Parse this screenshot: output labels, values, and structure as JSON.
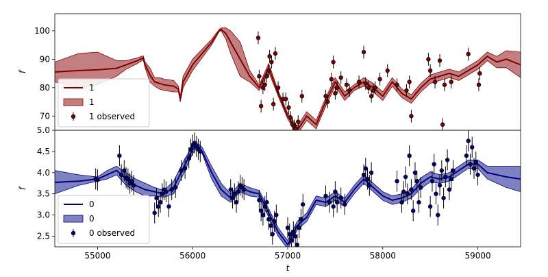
{
  "chart_data": [
    {
      "type": "line",
      "panel": "top",
      "ylabel": "f",
      "xlabel": "",
      "xlim": [
        54550,
        59450
      ],
      "ylim": [
        65,
        106
      ],
      "xticks": [
        55000,
        56000,
        57000,
        58000,
        59000
      ],
      "yticks": [
        70,
        80,
        90,
        100
      ],
      "ytick_labels": [
        "70",
        "80",
        "90",
        "100"
      ],
      "legend_position": "lower-left",
      "colors": {
        "line": "#800000",
        "band": "#a33a3a",
        "points": "#800000"
      },
      "legend": [
        {
          "kind": "line",
          "label": "1"
        },
        {
          "kind": "band",
          "label": "1"
        },
        {
          "kind": "errorbar",
          "label": "1 observed"
        }
      ],
      "series": [
        {
          "name": "1",
          "kind": "mean",
          "x": [
            54550,
            54800,
            55000,
            55200,
            55300,
            55420,
            55480,
            55500,
            55550,
            55600,
            55650,
            55700,
            55800,
            55850,
            55870,
            55900,
            56000,
            56100,
            56200,
            56280,
            56300,
            56350,
            56400,
            56500,
            56600,
            56700,
            56800,
            56900,
            57000,
            57100,
            57200,
            57300,
            57400,
            57500,
            57600,
            57700,
            57800,
            57900,
            58000,
            58100,
            58200,
            58300,
            58400,
            58500,
            58600,
            58700,
            58800,
            58900,
            59000,
            59100,
            59200,
            59300,
            59450
          ],
          "y": [
            85.5,
            86,
            86.3,
            86.8,
            88,
            89.5,
            90.5,
            88,
            84.5,
            82,
            81.5,
            81,
            80.5,
            79.5,
            76,
            82,
            88,
            92,
            96,
            100,
            100.5,
            99,
            96,
            90,
            84,
            80,
            87,
            78,
            70,
            65,
            70,
            67,
            75,
            82,
            77,
            80,
            82,
            80,
            77,
            82,
            78,
            76,
            80,
            83,
            84,
            85,
            84,
            86,
            88,
            91,
            89,
            90,
            88
          ]
        },
        {
          "name": "1",
          "kind": "band",
          "x": [
            54550,
            54800,
            55000,
            55200,
            55300,
            55420,
            55480,
            55500,
            55550,
            55600,
            55650,
            55700,
            55800,
            55850,
            55870,
            55900,
            56000,
            56100,
            56200,
            56280,
            56300,
            56350,
            56400,
            56500,
            56600,
            56700,
            56800,
            56900,
            57000,
            57100,
            57200,
            57300,
            57400,
            57500,
            57600,
            57700,
            57800,
            57900,
            58000,
            58100,
            58200,
            58300,
            58400,
            58500,
            58600,
            58700,
            58800,
            58900,
            59000,
            59100,
            59200,
            59300,
            59450
          ],
          "y_low": [
            82,
            80,
            81,
            84,
            86.5,
            88.5,
            89.8,
            87,
            82,
            80.5,
            79.5,
            79,
            78.5,
            78.5,
            75,
            80,
            86,
            90.5,
            95,
            99.8,
            100,
            97,
            92,
            84,
            82,
            79,
            85.5,
            77,
            69,
            63.5,
            68.5,
            65.5,
            73.5,
            80.5,
            75.5,
            79,
            80.5,
            78.5,
            75.5,
            80.5,
            76.5,
            74.5,
            78.5,
            81.5,
            82.5,
            83.5,
            82.5,
            84.5,
            86.5,
            89.5,
            87,
            87,
            83.5
          ],
          "y_high": [
            89,
            92,
            92.5,
            89.5,
            89.5,
            90.5,
            91.2,
            89,
            87,
            83.5,
            83.5,
            83,
            82.5,
            80.5,
            77,
            84,
            90,
            93.5,
            97,
            100.5,
            101,
            101,
            100,
            96,
            86,
            81,
            88.5,
            79,
            71,
            66.5,
            71.5,
            68.5,
            76.5,
            83.5,
            78.5,
            81,
            83.5,
            81.5,
            78.5,
            83.5,
            79.5,
            77.5,
            81.5,
            84.5,
            85.5,
            86.5,
            85.5,
            87.5,
            89.5,
            92.5,
            91,
            93,
            92.5
          ]
        },
        {
          "name": "1 observed",
          "kind": "observed",
          "x": [
            56690,
            56700,
            56720,
            56740,
            56760,
            56780,
            56800,
            56810,
            56830,
            56850,
            56870,
            56900,
            56950,
            56980,
            57010,
            57030,
            57050,
            57070,
            57080,
            57100,
            57110,
            57150,
            57400,
            57420,
            57460,
            57480,
            57500,
            57520,
            57560,
            57620,
            57650,
            57750,
            57800,
            57820,
            57850,
            57880,
            57900,
            57920,
            57970,
            58050,
            58150,
            58250,
            58280,
            58300,
            58480,
            58500,
            58550,
            58600,
            58630,
            58650,
            58720,
            58900,
            59010,
            59020
          ],
          "y": [
            97.5,
            84,
            73.5,
            80,
            81,
            84,
            86,
            91,
            89,
            74.2,
            92,
            80,
            76,
            76,
            73,
            69.5,
            67,
            66.5,
            65.5,
            64,
            68,
            77,
            77,
            75,
            83,
            89,
            78,
            80,
            83.5,
            81,
            79,
            82,
            92.5,
            81.5,
            80,
            77,
            79,
            80,
            83,
            86,
            81,
            79,
            82,
            70,
            90,
            86,
            82,
            89.5,
            67,
            81,
            82,
            91.8,
            81,
            85
          ]
        }
      ]
    },
    {
      "type": "line",
      "panel": "bottom",
      "ylabel": "f",
      "xlabel": "t",
      "xlim": [
        54550,
        59450
      ],
      "ylim": [
        2.25,
        5.0
      ],
      "xticks": [
        55000,
        56000,
        57000,
        58000,
        59000
      ],
      "xtick_labels": [
        "55000",
        "56000",
        "57000",
        "58000",
        "59000"
      ],
      "yticks": [
        2.5,
        3.0,
        3.5,
        4.0,
        4.5,
        5.0
      ],
      "ytick_labels": [
        "2.5",
        "3.0",
        "3.5",
        "4.0",
        "4.5",
        "5.0"
      ],
      "legend_position": "lower-left",
      "colors": {
        "line": "#000080",
        "band": "#3b3fa0",
        "points": "#000080"
      },
      "legend": [
        {
          "kind": "line",
          "label": "0"
        },
        {
          "kind": "band",
          "label": "0"
        },
        {
          "kind": "errorbar",
          "label": "0 observed"
        }
      ],
      "series": [
        {
          "name": "0",
          "kind": "mean",
          "x": [
            54550,
            54800,
            55000,
            55100,
            55200,
            55300,
            55400,
            55500,
            55600,
            55700,
            55800,
            55900,
            56000,
            56050,
            56100,
            56200,
            56300,
            56400,
            56500,
            56600,
            56700,
            56800,
            56900,
            57000,
            57100,
            57200,
            57300,
            57400,
            57500,
            57600,
            57700,
            57800,
            57900,
            58000,
            58100,
            58200,
            58300,
            58400,
            58500,
            58600,
            58700,
            58800,
            58900,
            59000,
            59100,
            59200,
            59300,
            59450
          ],
          "y": [
            3.77,
            3.8,
            3.85,
            3.95,
            4.05,
            3.85,
            3.7,
            3.6,
            3.55,
            3.5,
            3.65,
            4.1,
            4.55,
            4.65,
            4.5,
            4.0,
            3.6,
            3.4,
            3.65,
            3.55,
            3.5,
            3.05,
            2.6,
            2.3,
            2.75,
            2.95,
            3.35,
            3.3,
            3.45,
            3.3,
            3.6,
            3.85,
            3.65,
            3.45,
            3.35,
            3.4,
            3.5,
            3.75,
            3.9,
            3.85,
            3.9,
            4.05,
            4.2,
            4.2,
            4.0,
            3.95,
            3.9,
            3.85
          ]
        },
        {
          "name": "0",
          "kind": "band",
          "x": [
            54550,
            54800,
            55000,
            55100,
            55200,
            55300,
            55400,
            55500,
            55600,
            55700,
            55800,
            55900,
            56000,
            56050,
            56100,
            56200,
            56300,
            56400,
            56500,
            56600,
            56700,
            56800,
            56900,
            57000,
            57100,
            57200,
            57300,
            57400,
            57500,
            57600,
            57700,
            57800,
            57900,
            58000,
            58100,
            58200,
            58300,
            58400,
            58500,
            58600,
            58700,
            58800,
            58900,
            59000,
            59100,
            59200,
            59300,
            59450
          ],
          "y_low": [
            3.5,
            3.7,
            3.8,
            3.85,
            3.95,
            3.7,
            3.55,
            3.45,
            3.45,
            3.42,
            3.5,
            3.95,
            4.45,
            4.6,
            4.45,
            3.85,
            3.45,
            3.3,
            3.55,
            3.45,
            3.42,
            2.95,
            2.5,
            2.2,
            2.65,
            2.85,
            3.25,
            3.2,
            3.35,
            3.2,
            3.5,
            3.75,
            3.55,
            3.35,
            3.25,
            3.3,
            3.4,
            3.62,
            3.78,
            3.75,
            3.8,
            3.95,
            4.1,
            4.1,
            3.85,
            3.75,
            3.65,
            3.55
          ],
          "y_high": [
            4.05,
            3.95,
            3.9,
            4.05,
            4.15,
            4.0,
            3.85,
            3.75,
            3.65,
            3.58,
            3.8,
            4.25,
            4.65,
            4.7,
            4.6,
            4.15,
            3.75,
            3.5,
            3.75,
            3.65,
            3.58,
            3.15,
            2.7,
            2.4,
            2.85,
            3.05,
            3.45,
            3.4,
            3.55,
            3.4,
            3.7,
            3.95,
            3.75,
            3.55,
            3.45,
            3.5,
            3.6,
            3.88,
            4.02,
            3.95,
            4.0,
            4.15,
            4.3,
            4.3,
            4.15,
            4.15,
            4.15,
            4.15
          ]
        },
        {
          "name": "0 observed",
          "kind": "observed",
          "x": [
            54980,
            55000,
            55230,
            55250,
            55280,
            55300,
            55320,
            55340,
            55360,
            55380,
            55600,
            55620,
            55640,
            55660,
            55680,
            55700,
            55720,
            55750,
            55780,
            55820,
            55880,
            55920,
            55960,
            55980,
            56000,
            56020,
            56040,
            56060,
            56080,
            56400,
            56420,
            56440,
            56460,
            56480,
            56500,
            56520,
            56540,
            56700,
            56720,
            56740,
            56760,
            56780,
            56800,
            56820,
            56840,
            56860,
            56880,
            57000,
            57020,
            57040,
            57060,
            57080,
            57100,
            57120,
            57140,
            57160,
            57400,
            57440,
            57480,
            57500,
            57520,
            57560,
            57600,
            57800,
            57820,
            57840,
            57860,
            57880,
            58150,
            58200,
            58220,
            58240,
            58260,
            58280,
            58300,
            58320,
            58340,
            58360,
            58380,
            58400,
            58500,
            58520,
            58540,
            58560,
            58580,
            58600,
            58620,
            58640,
            58660,
            58680,
            58700,
            58720,
            58740,
            58880,
            58900,
            58920,
            58940,
            58960,
            58980,
            59000
          ],
          "y": [
            3.85,
            3.83,
            4.4,
            3.95,
            4.05,
            3.88,
            3.85,
            3.75,
            3.8,
            3.7,
            3.05,
            3.4,
            3.2,
            3.3,
            3.5,
            3.6,
            3.55,
            3.2,
            3.6,
            3.65,
            4.05,
            4.1,
            4.35,
            4.55,
            4.65,
            4.7,
            4.62,
            4.55,
            4.5,
            3.6,
            3.4,
            3.5,
            3.3,
            3.55,
            3.7,
            3.65,
            3.6,
            3.35,
            3.1,
            3.0,
            3.2,
            3.3,
            2.9,
            2.75,
            2.55,
            2.85,
            3.0,
            2.7,
            2.55,
            2.4,
            2.6,
            2.5,
            2.3,
            2.7,
            2.9,
            3.25,
            3.45,
            3.3,
            3.2,
            3.55,
            3.3,
            3.4,
            3.25,
            3.95,
            4.1,
            3.85,
            3.7,
            4.0,
            3.8,
            3.3,
            3.55,
            3.9,
            3.5,
            4.4,
            3.6,
            3.1,
            4.0,
            3.8,
            3.3,
            3.65,
            3.2,
            3.8,
            4.2,
            3.5,
            3.0,
            3.7,
            4.05,
            3.4,
            3.9,
            4.3,
            3.6,
            3.85,
            4.05,
            4.4,
            4.75,
            4.2,
            4.6,
            4.1,
            4.25,
            3.95
          ]
        }
      ]
    }
  ]
}
